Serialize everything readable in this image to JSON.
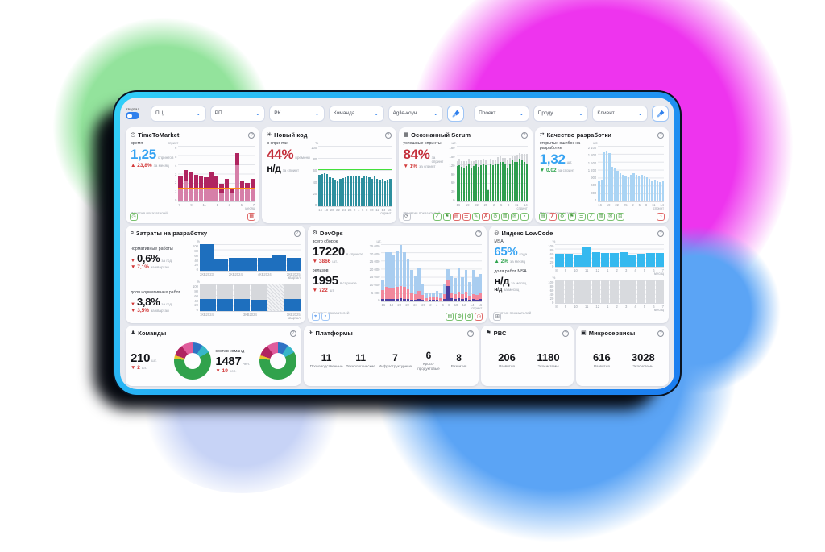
{
  "glyphs": {
    "down": "▼",
    "up": "▲",
    "chevron": "⌄",
    "help": "?"
  },
  "palette": {
    "accent_blue": "#2f80ed",
    "frame_cyan": "#31d0f8",
    "frame_blue": "#1b7df0",
    "value_blue": "#36a3f2",
    "value_red": "#c4303c",
    "delta_red": "#d23a3a",
    "delta_green": "#2fa44e",
    "blob_green": "#93e39c",
    "blob_pink": "#ee34ee",
    "blob_blue": "#5ba4f5"
  },
  "filters": {
    "quarter_label": "Квартал",
    "dropdowns_left": [
      "ПЦ",
      "РП",
      "РК",
      "Команда",
      "Agile-коуч"
    ],
    "dropdowns_right": [
      "Проект",
      "Проду...",
      "Клиент"
    ]
  },
  "cards": {
    "ttm": {
      "title": "TimeToMarket",
      "stat_label": "время",
      "value": "1,25",
      "unit": "спринтов",
      "delta": "▲ 23,8%",
      "delta_sub": "за месяц",
      "link": "Понятия показателей",
      "chart": {
        "ymax": 6,
        "unit": "спринт",
        "yticks": [
          "6",
          "5",
          "4",
          "3",
          "2",
          "1",
          "0"
        ],
        "series": [
          {
            "color": "#d67fa8",
            "values": [
              1.4,
              2.2,
              1.5,
              1.4,
              1.4,
              1.4,
              1.5,
              1.4,
              0.9,
              1.3,
              1.0,
              3.9,
              1.4,
              1.3,
              1.4
            ]
          },
          {
            "color": "#b02560",
            "values": [
              1.4,
              1.2,
              1.6,
              1.5,
              1.3,
              1.2,
              1.7,
              1.3,
              1.0,
              1.1,
              0.5,
              1.3,
              0.8,
              0.7,
              1.0
            ]
          }
        ],
        "line": {
          "v": 1.4,
          "c": "#ff9015"
        },
        "xticks": [
          "7",
          "9",
          "11",
          "1",
          "3",
          "5",
          "7"
        ],
        "xlabel": "месяц"
      },
      "footer_left": [
        {
          "name": "clock-icon",
          "glyph": "◷",
          "tone": "g"
        }
      ],
      "footer_right": [
        {
          "name": "grid-icon",
          "glyph": "▦",
          "tone": "r"
        }
      ]
    },
    "newcode": {
      "title": "Новый код",
      "stat_label": "в спринтах",
      "value": "44%",
      "unit": "времени",
      "value2": "н/д",
      "unit2": "за спринт",
      "chart": {
        "ymax": 100,
        "unit": "%",
        "yticks": [
          "100",
          "80",
          "60",
          "40",
          "20",
          "0"
        ],
        "series": [
          {
            "color": "#2d8f9e",
            "values": [
              52,
              54,
              55,
              53,
              48,
              47,
              44,
              43,
              46,
              47,
              48,
              49,
              50,
              50,
              49,
              51,
              47,
              49,
              50,
              48,
              45,
              50,
              46,
              44,
              45,
              42,
              44,
              45
            ]
          }
        ],
        "line": {
          "v": 60,
          "c": "#45e03c"
        },
        "xticks": [
          "16",
          "18",
          "20",
          "22",
          "24",
          "26",
          "2",
          "4",
          "6",
          "8",
          "10",
          "12",
          "14",
          "16"
        ],
        "xlabel": "спринт"
      },
      "footer_left": [],
      "footer_right": []
    },
    "scrum": {
      "title": "Осознанный Scrum",
      "stat_label": "успешные спринты",
      "value": "84%",
      "unit": "за спринт",
      "delta": "▼ 1%",
      "delta_sub": "за спринт",
      "link": "Понятия показателей",
      "chart": {
        "ymax": 180,
        "unit": "шт.",
        "yticks": [
          "180",
          "150",
          "120",
          "90",
          "60",
          "30",
          "0"
        ],
        "series": [
          {
            "color": "#2f9e4f",
            "values": [
              115,
              118,
              112,
              108,
              116,
              120,
              110,
              114,
              119,
              112,
              117,
              124,
              118,
              38,
              119,
              117,
              121,
              124,
              129,
              127,
              119,
              109,
              124,
              134,
              127,
              129,
              138,
              133,
              129,
              124
            ]
          },
          {
            "color": "#d3d5d9",
            "values": [
              15,
              20,
              18,
              22,
              15,
              18,
              20,
              16,
              18,
              22,
              20,
              15,
              18,
              5,
              20,
              18,
              15,
              20,
              18,
              15,
              22,
              25,
              18,
              15,
              20,
              22,
              18,
              20,
              25,
              30
            ]
          }
        ],
        "xticks": [
          "16",
          "19",
          "22",
          "25",
          "2",
          "5",
          "8",
          "11",
          "14"
        ],
        "xlabel": "спринт"
      },
      "footer_left": [
        {
          "name": "refresh-icon",
          "glyph": "⟳",
          "tone": "n"
        }
      ],
      "footer_right": [
        {
          "name": "check-icon",
          "glyph": "✓",
          "tone": "g"
        },
        {
          "name": "flag-icon",
          "glyph": "⚑",
          "tone": "g"
        },
        {
          "name": "list-icon",
          "glyph": "▤",
          "tone": "r"
        },
        {
          "name": "menu-icon",
          "glyph": "☰",
          "tone": "r"
        },
        {
          "name": "edit-icon",
          "glyph": "✎",
          "tone": "g"
        },
        {
          "name": "cross-icon",
          "glyph": "✗",
          "tone": "r"
        },
        {
          "name": "block-icon",
          "glyph": "⊘",
          "tone": "g"
        },
        {
          "name": "rows-icon",
          "glyph": "▥",
          "tone": "g"
        },
        {
          "name": "mail-icon",
          "glyph": "✉",
          "tone": "g"
        },
        {
          "name": "timer-icon",
          "glyph": "◔",
          "tone": "g"
        }
      ]
    },
    "quality": {
      "title": "Качество разработки",
      "stat_label": "открытых ошибок на разработке",
      "value": "1,32",
      "unit": "шт.",
      "delta": "▼ 0,02",
      "delta_sub": "за спринт",
      "link": "Понятия показателей",
      "chart": {
        "ymax": 2100,
        "unit": "шт.",
        "yticks": [
          "2 100",
          "1 800",
          "1 500",
          "1 200",
          "900",
          "600",
          "300",
          "0"
        ],
        "series": [
          {
            "color": "#aad4f4",
            "values": [
              780,
              820,
              1850,
              1900,
              1840,
              1320,
              1260,
              1150,
              1080,
              1020,
              980,
              920,
              1000,
              1060,
              1010,
              960,
              1010,
              960,
              900,
              860,
              780,
              820,
              760,
              720,
              760
            ]
          }
        ],
        "xticks": [
          "16",
          "19",
          "22",
          "25",
          "2",
          "5",
          "8",
          "11",
          "14"
        ],
        "xlabel": "спринт"
      },
      "footer_left": [
        {
          "name": "chart-icon",
          "glyph": "▤",
          "tone": "g"
        },
        {
          "name": "bug-icon",
          "glyph": "✗",
          "tone": "r"
        },
        {
          "name": "gear-icon",
          "glyph": "⚙",
          "tone": "g"
        },
        {
          "name": "flag-icon",
          "glyph": "⚑",
          "tone": "g"
        },
        {
          "name": "menu-icon",
          "glyph": "☰",
          "tone": "g"
        },
        {
          "name": "check-icon",
          "glyph": "✓",
          "tone": "g"
        },
        {
          "name": "rows-icon",
          "glyph": "▥",
          "tone": "g"
        },
        {
          "name": "mail-icon",
          "glyph": "✉",
          "tone": "g"
        },
        {
          "name": "plus-icon",
          "glyph": "⊞",
          "tone": "g"
        }
      ],
      "footer_right": [
        {
          "name": "alert-icon",
          "glyph": "◔",
          "tone": "r"
        }
      ]
    },
    "costs": {
      "title": "Затраты на разработку",
      "g1": {
        "label": "нормативные работы",
        "value": "0,6%",
        "value_sub": "за год",
        "delta": "▼ 7,1%",
        "delta_sub": "за квартал"
      },
      "g2": {
        "label": "доля нормативных работ",
        "value": "3,8%",
        "value_sub": "за год",
        "delta": "▼ 3,5%",
        "delta_sub": "за квартал"
      },
      "chart_top": {
        "ymax": 100,
        "unit": "%",
        "yticks": [
          "100",
          "80",
          "60",
          "40",
          "20",
          "0"
        ],
        "series": [
          {
            "color": "#1e6fbe",
            "values": [
              100,
              47,
              50,
              50,
              50,
              57,
              50
            ]
          }
        ],
        "xticks": [
          "2КВ2023",
          "2КВ2024",
          "4КВ2024",
          "2КВ2025"
        ],
        "xlabel": "квартал"
      },
      "chart_bottom": {
        "ymax": 100,
        "unit": "%",
        "yticks": [
          "100",
          "80",
          "60",
          "40",
          "20",
          "0"
        ],
        "series": [
          {
            "color": "#1e6fbe",
            "values": [
              45,
              45,
              45,
              43,
              0,
              45
            ]
          },
          {
            "color": "#d6d8dc",
            "values": [
              55,
              55,
              55,
              57,
              0,
              55
            ]
          },
          {
            "color": "hatch",
            "values": [
              0,
              0,
              0,
              0,
              100,
              0
            ]
          }
        ],
        "xticks": [
          "1КВ2024",
          "3КВ2024",
          "1КВ2025"
        ],
        "xlabel": "квартал"
      }
    },
    "devops": {
      "title": "DevOps",
      "g1": {
        "label": "всего сборок",
        "value": "17220",
        "value_sub": "в спринте",
        "delta": "▼ 3866",
        "delta_unit": "шт."
      },
      "g2": {
        "label": "релизов",
        "value": "1995",
        "value_sub": "в спринте",
        "delta": "▼ 722",
        "delta_unit": "шт."
      },
      "link": "Понятия показателей",
      "chart": {
        "ymax": 35000,
        "unit": "шт.",
        "yticks": [
          "35 000",
          "30 000",
          "25 000",
          "20 000",
          "15 000",
          "10 000",
          "5 000",
          "0"
        ],
        "series": [
          {
            "color": "#4b3fa0",
            "values": [
              1500,
              1800,
              1700,
              1600,
              1800,
              2000,
              1800,
              1500,
              1200,
              1000,
              1500,
              1200,
              800,
              900,
              900,
              1100,
              800,
              1500,
              9500,
              2000,
              1800,
              2200,
              1500,
              2000,
              1200,
              1500,
              1300,
              1600
            ]
          },
          {
            "color": "#f2889c",
            "values": [
              5500,
              7000,
              6800,
              6500,
              7000,
              7500,
              7000,
              6000,
              4500,
              3500,
              5000,
              3000,
              1500,
              1800,
              1800,
              2200,
              1500,
              3000,
              3500,
              3000,
              2800,
              4000,
              3000,
              3800,
              2500,
              3000,
              2800,
              3200
            ]
          },
          {
            "color": "#a9cdf0",
            "values": [
              6000,
              21500,
              21500,
              20500,
              22500,
              25000,
              21500,
              18000,
              13500,
              11000,
              14000,
              6500,
              2500,
              2800,
              2800,
              3200,
              2500,
              6000,
              7000,
              11000,
              10000,
              14500,
              10500,
              13500,
              8000,
              15000,
              11000,
              12000
            ]
          }
        ],
        "xticks": [
          "16",
          "18",
          "20",
          "22",
          "24",
          "26",
          "2",
          "4",
          "6",
          "8",
          "10",
          "12",
          "14",
          "16"
        ],
        "xlabel": "спринт"
      },
      "footer_left": [
        {
          "name": "target-icon",
          "glyph": "⌖",
          "tone": "b"
        },
        {
          "name": "history-icon",
          "glyph": "◔",
          "tone": "b"
        }
      ],
      "footer_right": [
        {
          "name": "report-icon",
          "glyph": "▤",
          "tone": "g"
        },
        {
          "name": "gear-icon",
          "glyph": "⚙",
          "tone": "g"
        },
        {
          "name": "settings-icon",
          "glyph": "⚙",
          "tone": "g"
        },
        {
          "name": "clock-icon",
          "glyph": "◷",
          "tone": "r"
        }
      ]
    },
    "lowcode": {
      "title": "Индекс LowCode",
      "g1": {
        "label": "MSA",
        "value": "65%",
        "value_sub": "кода",
        "delta": "▲ 2%",
        "delta_sub": "за месяц"
      },
      "g2": {
        "label": "доля работ MSA",
        "value": "н/д",
        "value_sub": "за месяц",
        "delta": "н/д",
        "delta_sub": "за месяц"
      },
      "link": "Понятия показателей",
      "chart_top": {
        "ymax": 100,
        "unit": "%",
        "yticks": [
          "100",
          "80",
          "60",
          "40",
          "20",
          "0"
        ],
        "series": [
          {
            "color": "#35b9ef",
            "values": [
              57,
              57,
              55,
              85,
              65,
              62,
              63,
              65,
              55,
              57,
              60,
              62
            ]
          }
        ],
        "xticks": [
          "8",
          "9",
          "10",
          "11",
          "12",
          "1",
          "2",
          "3",
          "4",
          "5",
          "6",
          "7"
        ],
        "xlabel": "месяц"
      },
      "chart_bottom": {
        "ymax": 100,
        "unit": "%",
        "yticks": [
          "100",
          "80",
          "60",
          "40",
          "20",
          "0"
        ],
        "series": [
          {
            "color": "#d8dade",
            "values": [
              100,
              100,
              100,
              100,
              100,
              100,
              100,
              100,
              100,
              100,
              100,
              100
            ]
          }
        ],
        "xticks": [
          "8",
          "9",
          "10",
          "11",
          "12",
          "1",
          "2",
          "3",
          "4",
          "5",
          "6",
          "7"
        ],
        "xlabel": "месяц"
      },
      "footer_left": [
        {
          "name": "export-icon",
          "glyph": "⊞",
          "tone": "n"
        }
      ],
      "footer_right": []
    },
    "teams": {
      "title": "Команды",
      "g1": {
        "value": "210",
        "unit": "шт.",
        "delta": "▼ 2",
        "delta_unit": "шт."
      },
      "g2": {
        "label": "состав команд",
        "value": "1487",
        "unit": "чел.",
        "delta": "▼ 19",
        "delta_unit": "чел."
      },
      "slices": [
        {
          "c": "#2f72c4",
          "v": 9
        },
        {
          "c": "#38b6c9",
          "v": 8
        },
        {
          "c": "#31a24c",
          "v": 60
        },
        {
          "c": "#e8c22e",
          "v": 3
        },
        {
          "c": "#b02360",
          "v": 10
        },
        {
          "c": "#e05c9c",
          "v": 10
        }
      ]
    },
    "platforms": {
      "title": "Платформы",
      "items": [
        {
          "v": "11",
          "label": "Производственные"
        },
        {
          "v": "11",
          "label": "Технологические"
        },
        {
          "v": "7",
          "label": "Инфраструктурные"
        },
        {
          "v": "6",
          "label": "Кросс-продуктовые"
        },
        {
          "v": "8",
          "label": "Развития"
        }
      ]
    },
    "pvc": {
      "title": "РВС",
      "items": [
        {
          "v": "206",
          "label": "Развития"
        },
        {
          "v": "1180",
          "label": "Экосистемы"
        }
      ]
    },
    "micro": {
      "title": "Микросервисы",
      "items": [
        {
          "v": "616",
          "label": "Развития"
        },
        {
          "v": "3028",
          "label": "Экосистемы"
        }
      ]
    }
  }
}
